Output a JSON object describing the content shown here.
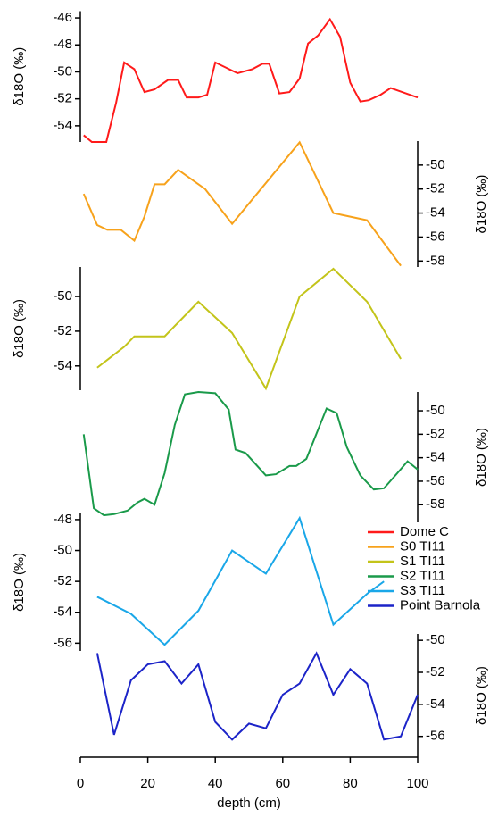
{
  "chart_data": [
    {
      "type": "line",
      "name": "Dome C",
      "color": "#ff1a1a",
      "axis_side": "left",
      "ylabel": "δ18O (‰)",
      "x": [
        1,
        3.4,
        7.7,
        10.6,
        13,
        16,
        19,
        22,
        26,
        29,
        31.5,
        35,
        37.6,
        40,
        46.6,
        51,
        54,
        56,
        59,
        62,
        65,
        67.5,
        70.5,
        74,
        77,
        80,
        83,
        85.5,
        89,
        92,
        100
      ],
      "values": [
        -54.7,
        -55.2,
        -55.2,
        -52.3,
        -49.3,
        -49.8,
        -51.5,
        -51.3,
        -50.6,
        -50.6,
        -51.9,
        -51.9,
        -51.7,
        -49.3,
        -50.1,
        -49.8,
        -49.4,
        -49.4,
        -51.6,
        -51.5,
        -50.5,
        -47.9,
        -47.3,
        -46.1,
        -47.4,
        -50.8,
        -52.2,
        -52.1,
        -51.7,
        -51.2,
        -51.9
      ],
      "xlim": [
        0,
        100
      ],
      "ylim": [
        -55.2,
        -45.5
      ],
      "yticks": [
        -46,
        -48,
        -50,
        -52,
        -54
      ]
    },
    {
      "type": "line",
      "name": "S0 TI11",
      "color": "#f7a21b",
      "axis_side": "right",
      "ylabel": "δ18O (‰)",
      "x": [
        1,
        5,
        8,
        12,
        16,
        19,
        22,
        25,
        29,
        37,
        45,
        65,
        75,
        85,
        95
      ],
      "values": [
        -52.4,
        -55,
        -55.4,
        -55.4,
        -56.3,
        -54.3,
        -51.6,
        -51.6,
        -50.4,
        -52,
        -54.9,
        -48.1,
        -54,
        -54.6,
        -58.4
      ],
      "xlim": [
        0,
        100
      ],
      "ylim": [
        -58.5,
        -48
      ],
      "yticks": [
        -50,
        -52,
        -54,
        -56,
        -58
      ]
    },
    {
      "type": "line",
      "name": "S1 TI11",
      "color": "#c3c41a",
      "axis_side": "left",
      "ylabel": "δ18O (‰)",
      "x": [
        5,
        9,
        13,
        16,
        25,
        35,
        45,
        55,
        65,
        75,
        85,
        95
      ],
      "values": [
        -54.1,
        -53.5,
        -52.9,
        -52.3,
        -52.3,
        -50.3,
        -52.1,
        -55.3,
        -50,
        -48.4,
        -50.3,
        -53.6
      ],
      "xlim": [
        0,
        100
      ],
      "ylim": [
        -55.4,
        -48.3
      ],
      "yticks": [
        -50,
        -52,
        -54
      ]
    },
    {
      "type": "line",
      "name": "S2 TI11",
      "color": "#1a9a4a",
      "axis_side": "right",
      "ylabel": "δ18O (‰)",
      "x": [
        1,
        4,
        7,
        10,
        14,
        17,
        19,
        22,
        25,
        28,
        31,
        35,
        40,
        44,
        46,
        49,
        55,
        58,
        62,
        64,
        67,
        73,
        76,
        79,
        83,
        87,
        90,
        94,
        97,
        100
      ],
      "values": [
        -52,
        -58.3,
        -58.9,
        -58.8,
        -58.5,
        -57.8,
        -57.5,
        -58,
        -55.3,
        -51.2,
        -48.6,
        -48.4,
        -48.5,
        -49.9,
        -53.3,
        -53.6,
        -55.5,
        -55.4,
        -54.7,
        -54.7,
        -54.1,
        -49.8,
        -50.2,
        -53.1,
        -55.5,
        -56.7,
        -56.6,
        -55.3,
        -54.3,
        -55
      ],
      "xlim": [
        0,
        100
      ],
      "ylim": [
        -59.5,
        -48.4
      ],
      "yticks": [
        -50,
        -52,
        -54,
        -56,
        -58
      ]
    },
    {
      "type": "line",
      "name": "S3 TI11",
      "color": "#1aa7e8",
      "axis_side": "left",
      "ylabel": "δ18O (‰)",
      "x": [
        5,
        15,
        25,
        35,
        45,
        55,
        65,
        75,
        85,
        90
      ],
      "values": [
        -53,
        -54.1,
        -56.1,
        -53.9,
        -50,
        -51.5,
        -47.9,
        -54.8,
        -52.8,
        -52
      ],
      "xlim": [
        0,
        100
      ],
      "ylim": [
        -56.5,
        -47.6
      ],
      "yticks": [
        -48,
        -50,
        -52,
        -54,
        -56
      ]
    },
    {
      "type": "line",
      "name": "Point Barnola",
      "color": "#1c24c8",
      "axis_side": "right",
      "ylabel": "δ18O (‰)",
      "x": [
        5,
        10,
        15,
        20,
        25,
        30,
        35,
        40,
        45,
        50,
        55,
        60,
        65,
        70,
        75,
        80,
        85,
        90,
        95,
        100
      ],
      "values": [
        -50.8,
        -55.9,
        -52.5,
        -51.5,
        -51.3,
        -52.7,
        -51.5,
        -55.1,
        -56.2,
        -55.2,
        -55.5,
        -53.4,
        -52.7,
        -50.8,
        -53.4,
        -51.8,
        -52.7,
        -56.2,
        -56,
        -53.4
      ],
      "xlim": [
        0,
        100
      ],
      "ylim": [
        -57.3,
        -49.6
      ],
      "yticks": [
        -50,
        -52,
        -54,
        -56
      ],
      "xlabel": "depth (cm)",
      "xticks": [
        0,
        20,
        40,
        60,
        80,
        100
      ]
    }
  ]
}
